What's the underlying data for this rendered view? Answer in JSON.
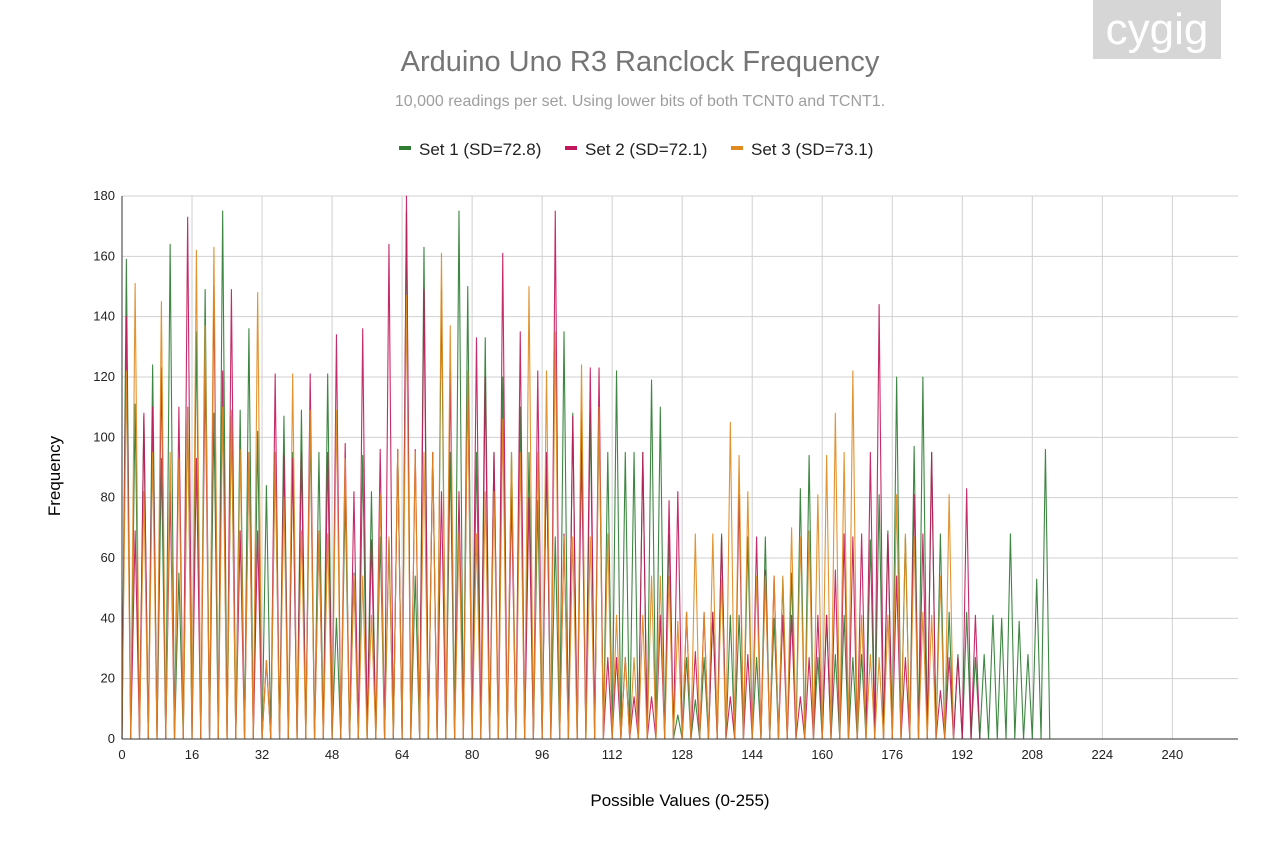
{
  "watermark": "cygig",
  "chart_data": {
    "type": "line",
    "title": "Arduino Uno R3 Ranclock Frequency",
    "subtitle": "10,000 readings per set. Using lower bits of both TCNT0 and TCNT1.",
    "xlabel": "Possible Values (0-255)",
    "ylabel": "Frequency",
    "xlim": [
      0,
      255
    ],
    "ylim": [
      0,
      180
    ],
    "x_ticks": [
      0,
      16,
      32,
      48,
      64,
      80,
      96,
      112,
      128,
      144,
      160,
      176,
      192,
      208,
      224,
      240
    ],
    "y_ticks": [
      0,
      20,
      40,
      60,
      80,
      100,
      120,
      140,
      160,
      180
    ],
    "grid": true,
    "legend_position": "top",
    "series": [
      {
        "name": "Set 1 (SD=72.8)",
        "color": "#2e7d32",
        "values": [
          0,
          159,
          0,
          111,
          0,
          107,
          0,
          124,
          0,
          93,
          0,
          164,
          0,
          55,
          0,
          110,
          0,
          135,
          0,
          149,
          0,
          108,
          0,
          175,
          0,
          107,
          0,
          109,
          0,
          136,
          0,
          102,
          0,
          84,
          0,
          95,
          0,
          107,
          0,
          95,
          0,
          109,
          0,
          103,
          0,
          95,
          0,
          121,
          0,
          40,
          0,
          81,
          0,
          55,
          0,
          94,
          0,
          82,
          0,
          67,
          0,
          66,
          0,
          96,
          0,
          175,
          0,
          54,
          0,
          163,
          0,
          95,
          0,
          149,
          0,
          95,
          0,
          175,
          0,
          150,
          0,
          95,
          0,
          133,
          0,
          95,
          0,
          120,
          0,
          95,
          0,
          110,
          0,
          95,
          0,
          79,
          0,
          94,
          0,
          67,
          0,
          135,
          0,
          108,
          0,
          108,
          0,
          108,
          0,
          110,
          0,
          95,
          0,
          122,
          0,
          95,
          0,
          95,
          0,
          95,
          0,
          119,
          0,
          110,
          0,
          68,
          0,
          8,
          0,
          27,
          0,
          13,
          0,
          27,
          0,
          42,
          0,
          68,
          0,
          41,
          0,
          41,
          0,
          67,
          0,
          27,
          0,
          67,
          0,
          40,
          0,
          53,
          0,
          55,
          0,
          83,
          0,
          94,
          0,
          27,
          0,
          41,
          0,
          28,
          0,
          41,
          0,
          27,
          0,
          28,
          0,
          66,
          0,
          81,
          0,
          69,
          0,
          120,
          0,
          67,
          0,
          97,
          0,
          120,
          0,
          95,
          0,
          68,
          0,
          42,
          0,
          28,
          0,
          42,
          0,
          27,
          0,
          28,
          0,
          41,
          0,
          40,
          0,
          68,
          0,
          39,
          0,
          28,
          0,
          53,
          0,
          96,
          0
        ]
      },
      {
        "name": "Set 2 (SD=72.1)",
        "color": "#c2185b",
        "values": [
          0,
          140,
          0,
          69,
          0,
          108,
          0,
          110,
          0,
          123,
          0,
          82,
          0,
          110,
          0,
          173,
          0,
          93,
          0,
          123,
          0,
          150,
          0,
          122,
          0,
          149,
          0,
          69,
          0,
          95,
          0,
          69,
          0,
          26,
          0,
          121,
          0,
          94,
          0,
          93,
          0,
          95,
          0,
          121,
          0,
          68,
          0,
          95,
          0,
          134,
          0,
          98,
          0,
          82,
          0,
          136,
          0,
          66,
          0,
          96,
          0,
          164,
          0,
          96,
          0,
          180,
          0,
          96,
          0,
          149,
          0,
          95,
          0,
          82,
          0,
          122,
          0,
          82,
          0,
          120,
          0,
          133,
          0,
          120,
          0,
          95,
          0,
          161,
          0,
          80,
          0,
          135,
          0,
          80,
          0,
          122,
          0,
          95,
          0,
          175,
          0,
          68,
          0,
          107,
          0,
          95,
          0,
          123,
          0,
          123,
          0,
          27,
          0,
          27,
          0,
          27,
          0,
          14,
          0,
          95,
          0,
          14,
          0,
          41,
          0,
          79,
          0,
          82,
          0,
          42,
          0,
          29,
          0,
          42,
          0,
          42,
          0,
          67,
          0,
          14,
          0,
          81,
          0,
          28,
          0,
          67,
          0,
          56,
          0,
          54,
          0,
          41,
          0,
          41,
          0,
          14,
          0,
          27,
          0,
          41,
          0,
          41,
          0,
          56,
          0,
          68,
          0,
          67,
          0,
          68,
          0,
          95,
          0,
          144,
          0,
          68,
          0,
          54,
          0,
          27,
          0,
          81,
          0,
          68,
          0,
          95,
          0,
          16,
          0,
          27,
          0,
          27,
          0,
          83,
          0,
          41,
          0
        ]
      },
      {
        "name": "Set 3 (SD=73.1)",
        "color": "#e08a1e",
        "values": [
          0,
          122,
          0,
          151,
          0,
          82,
          0,
          95,
          0,
          145,
          0,
          95,
          0,
          93,
          0,
          110,
          0,
          162,
          0,
          137,
          0,
          163,
          0,
          110,
          0,
          109,
          0,
          96,
          0,
          95,
          0,
          148,
          0,
          26,
          0,
          95,
          0,
          80,
          0,
          121,
          0,
          69,
          0,
          109,
          0,
          69,
          0,
          68,
          0,
          109,
          0,
          93,
          0,
          54,
          0,
          54,
          0,
          41,
          0,
          81,
          0,
          67,
          0,
          96,
          0,
          147,
          0,
          95,
          0,
          95,
          0,
          95,
          0,
          161,
          0,
          137,
          0,
          68,
          0,
          122,
          0,
          68,
          0,
          82,
          0,
          82,
          0,
          106,
          0,
          95,
          0,
          95,
          0,
          150,
          0,
          95,
          0,
          122,
          0,
          135,
          0,
          67,
          0,
          67,
          0,
          124,
          0,
          67,
          0,
          110,
          0,
          68,
          0,
          41,
          0,
          27,
          0,
          27,
          0,
          41,
          0,
          54,
          0,
          54,
          0,
          54,
          0,
          39,
          0,
          42,
          0,
          68,
          0,
          42,
          0,
          68,
          0,
          53,
          0,
          105,
          0,
          94,
          0,
          82,
          0,
          54,
          0,
          54,
          0,
          54,
          0,
          54,
          0,
          70,
          0,
          67,
          0,
          69,
          0,
          81,
          0,
          94,
          0,
          108,
          0,
          95,
          0,
          122,
          0,
          41,
          0,
          28,
          0,
          27,
          0,
          41,
          0,
          81,
          0,
          68,
          0,
          67,
          0,
          42,
          0,
          41,
          0,
          54,
          0,
          81,
          0
        ]
      }
    ]
  }
}
